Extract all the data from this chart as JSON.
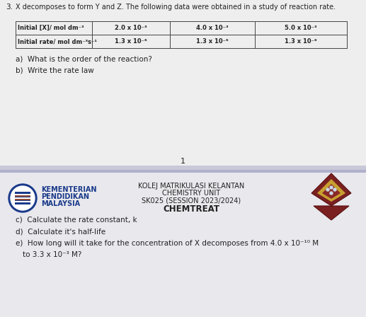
{
  "title_num": "3.",
  "title_text": "X decomposes to form Y and Z. The following data were obtained in a study of reaction rate.",
  "table_col0_r1": "Initial [X]/ mol dm⁻³",
  "table_col0_r2": "Initial rate/ mol dm⁻³s⁻¹",
  "table_r1": [
    "2.0 x 10⁻³",
    "4.0 x 10⁻³",
    "5.0 x 10⁻³"
  ],
  "table_r2": [
    "1.3 x 10⁻⁶",
    "1.3 x 10⁻⁶",
    "1.3 x 10⁻⁶"
  ],
  "qa": "a)  What is the order of the reaction?",
  "qb": "b)  Write the rate law",
  "page_num": "1",
  "footer_line1": "KOLEJ MATRIKULASI KELANTAN",
  "footer_line2": "CHEMISTRY UNIT",
  "footer_line3": "SK025 (SESSION 2023/2024)",
  "footer_line4": "CHEMTREAT",
  "org_line1": "KEMENTERIAN",
  "org_line2": "PENDIDIKAN",
  "org_line3": "MALAYSIA",
  "qc": "c)  Calculate the rate constant, k",
  "qd": "d)  Calculate it's half-life",
  "qe": "e)  How long will it take for the concentration of X decomposes from 4.0 x 10⁻¹⁰ M",
  "qe2": "to 3.3 x 10⁻³ M?",
  "bg_top": "#eeeeee",
  "bg_bottom": "#e8e8ed",
  "separator_color": "#aaaacc",
  "text_color": "#222222",
  "table_border_color": "#444444",
  "logo_blue": "#1a3a8a",
  "org_blue": "#1a3a8a"
}
